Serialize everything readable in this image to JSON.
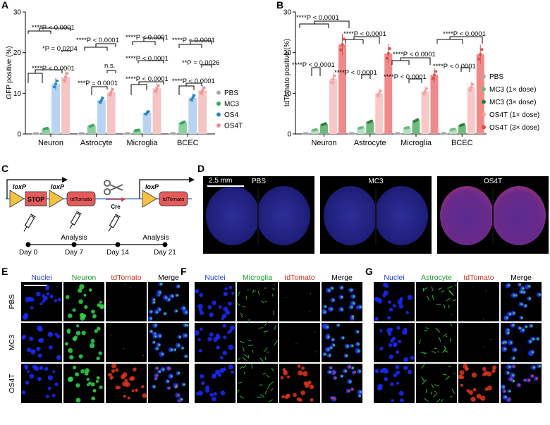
{
  "panels": {
    "A": "A",
    "B": "B",
    "C": "C",
    "D": "D",
    "E": "E",
    "F": "F",
    "G": "G"
  },
  "chart_data": [
    {
      "type": "bar",
      "panel": "A",
      "ylabel": "GFP positive (%)",
      "ylim": [
        0,
        30
      ],
      "yticks": [
        "0",
        "10",
        "20",
        "30"
      ],
      "categories": [
        "Neuron",
        "Astrocyte",
        "Microglia",
        "BCEC"
      ],
      "series": [
        {
          "name": "PBS",
          "color": "#a8a8a8",
          "values": [
            0.1,
            0.1,
            0.1,
            0.1
          ]
        },
        {
          "name": "MC3",
          "color": "#8fcf9f",
          "values": [
            1.3,
            2.0,
            0.9,
            2.8
          ]
        },
        {
          "name": "OS4",
          "color": "#b8d4f0",
          "values": [
            12.3,
            8.3,
            5.2,
            8.9
          ]
        },
        {
          "name": "OS4T",
          "color": "#f5c4c4",
          "values": [
            14.0,
            10.3,
            11.2,
            10.7
          ]
        }
      ],
      "point_colors": [
        "#a8a8a8",
        "#3ba55c",
        "#2d86c1",
        "#f09090"
      ],
      "annotations": [
        "****P < 0.0001",
        "*P = 0.0204",
        "****P < 0.0001",
        "****P < 0.0001",
        "n.s.",
        "***P = 0.0001",
        "****P < 0.0001",
        "****P < 0.0001",
        "****P < 0.0001",
        "****P < 0.0001",
        "**P = 0.0026",
        "****P < 0.0001"
      ]
    },
    {
      "type": "bar",
      "panel": "B",
      "ylabel": "tdTomato positive (%)",
      "ylim": [
        0,
        30
      ],
      "yticks": [
        "0",
        "10",
        "20",
        "30"
      ],
      "categories": [
        "Neuron",
        "Astrocyte",
        "Microglia",
        "BCEC"
      ],
      "series": [
        {
          "name": "PBS",
          "color": "#a8a8a8",
          "values": [
            0.1,
            0.1,
            0.1,
            0.1
          ]
        },
        {
          "name": "MC3 (1× dose)",
          "color": "#b5dfc0",
          "values": [
            1.0,
            1.5,
            1.5,
            1.1
          ]
        },
        {
          "name": "MC3 (3× dose)",
          "color": "#6dbb7d",
          "values": [
            2.4,
            3.0,
            3.3,
            2.2
          ]
        },
        {
          "name": "OS4T (1× dose)",
          "color": "#f8c8c8",
          "values": [
            13.5,
            10.0,
            10.5,
            11.5
          ]
        },
        {
          "name": "OS4T (3× dose)",
          "color": "#f08a8a",
          "values": [
            22.0,
            19.8,
            14.5,
            19.6
          ]
        }
      ],
      "point_colors": [
        "#a8a8a8",
        "#6dbb7d",
        "#2f7d3e",
        "#f4a0a0",
        "#d85050"
      ],
      "annotations": [
        "****P < 0.0001",
        "****P < 0.0001",
        "****P < 0.0001",
        "****P < 0.0001",
        "****P < 0.0001",
        "****P < 0.0001",
        "****P < 0.0001",
        "****P < 0.0001"
      ]
    }
  ],
  "schematic": {
    "loxp": "loxP",
    "stop": "STOP",
    "reporter": "tdTomato",
    "cre": "Cre",
    "days": [
      "Day 0",
      "Day 7",
      "Day 14",
      "Day 21"
    ],
    "analysis": "Analysis"
  },
  "brains": {
    "scale_bar": "2.5 mm",
    "labels": [
      "PBS",
      "MC3",
      "OS4T"
    ]
  },
  "micrographs": {
    "E": {
      "columns": [
        "Nuclei",
        "Neuron",
        "tdTomato",
        "Merge"
      ],
      "rows": [
        "PBS",
        "MC3",
        "OS4T"
      ]
    },
    "F": {
      "columns": [
        "Nuclei",
        "Microglia",
        "tdTomato",
        "Merge"
      ]
    },
    "G": {
      "columns": [
        "Nuclei",
        "Astrocyte",
        "tdTomato",
        "Merge"
      ]
    }
  }
}
